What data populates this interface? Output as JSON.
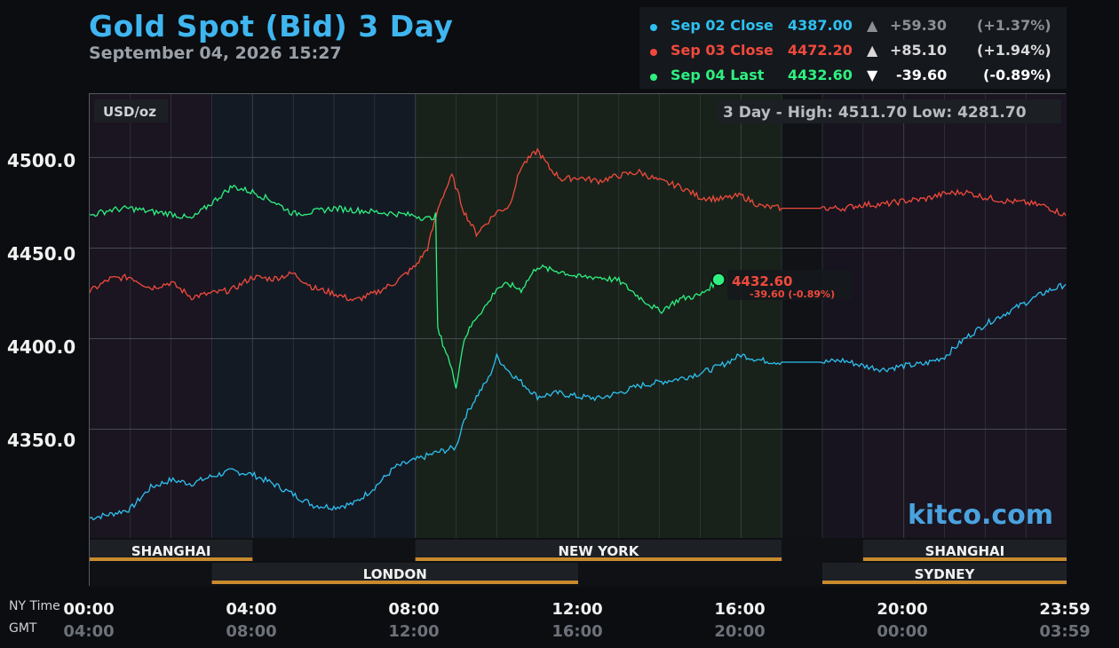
{
  "title": "Gold Spot (Bid) 3 Day",
  "subtitle": "September 04, 2026 15:27",
  "legend": [
    {
      "label": "Sep 02 Close",
      "value": "4387.00",
      "arrow": "▲",
      "change": "+59.30",
      "pct": "(+1.37%)",
      "color": "#2ec0f0",
      "valcolor": "#2ec0f0",
      "chgcolor": "#8c9096"
    },
    {
      "label": "Sep 03 Close",
      "value": "4472.20",
      "arrow": "▲",
      "change": "+85.10",
      "pct": "(+1.94%)",
      "color": "#f04a3c",
      "valcolor": "#f04a3c",
      "chgcolor": "#d8d8d8"
    },
    {
      "label": "Sep 04 Last",
      "value": "4432.60",
      "arrow": "▼",
      "change": "-39.60",
      "pct": "(-0.89%)",
      "color": "#2ef080",
      "valcolor": "#2ef080",
      "chgcolor": "#ffffff"
    }
  ],
  "unit_label": "USD/oz",
  "range_label": "3 Day - High: 4511.70  Low: 4281.70",
  "watermark": "kitco.com",
  "last_marker": {
    "value": "4432.60",
    "change": "-39.60 (-0.89%)",
    "hour": 15.45
  },
  "x_axis": {
    "ny_label": "NY Time",
    "gmt_label": "GMT",
    "ny_ticks": [
      "00:00",
      "04:00",
      "08:00",
      "12:00",
      "16:00",
      "20:00",
      "23:59"
    ],
    "gmt_ticks": [
      "04:00",
      "08:00",
      "12:00",
      "16:00",
      "20:00",
      "00:00",
      "03:59"
    ]
  },
  "y_ticks": [
    "4500.0",
    "4450.0",
    "4400.0",
    "4350.0"
  ],
  "sessions": [
    {
      "name": "SHANGHAI",
      "start": 0,
      "end": 4,
      "row": 1
    },
    {
      "name": "NEW YORK",
      "start": 8,
      "end": 17,
      "row": 1
    },
    {
      "name": "SHANGHAI",
      "start": 19,
      "end": 24,
      "row": 1
    },
    {
      "name": "LONDON",
      "start": 3,
      "end": 12,
      "row": 2
    },
    {
      "name": "SYDNEY",
      "start": 18,
      "end": 24,
      "row": 2
    }
  ],
  "chart_data": {
    "type": "line",
    "title": "Gold Spot (Bid) 3 Day",
    "ylabel": "USD/oz",
    "ylim": [
      4290,
      4535
    ],
    "xlim_hours": [
      0,
      24
    ],
    "y_ticks": [
      4350,
      4400,
      4450,
      4500
    ],
    "x_ticks_ny": [
      "00:00",
      "04:00",
      "08:00",
      "12:00",
      "16:00",
      "20:00",
      "23:59"
    ],
    "grid": true,
    "high": 4511.7,
    "low": 4281.7,
    "series": [
      {
        "name": "Sep 02 Close",
        "color": "#2ec0f0",
        "x": [
          0,
          0.5,
          1,
          1.5,
          2,
          2.5,
          3,
          3.5,
          4,
          4.5,
          5,
          5.5,
          6,
          6.5,
          7,
          7.5,
          8,
          8.5,
          9,
          9.2,
          9.5,
          9.8,
          10,
          10.3,
          10.6,
          11,
          11.5,
          12,
          12.5,
          13,
          13.5,
          14,
          14.5,
          15,
          15.5,
          16,
          16.5,
          17,
          18,
          18.5,
          19,
          19.5,
          20,
          20.5,
          21,
          21.5,
          22,
          22.5,
          23,
          23.5,
          23.98
        ],
        "y": [
          4301,
          4303,
          4306,
          4318,
          4322,
          4320,
          4324,
          4327,
          4325,
          4320,
          4314,
          4308,
          4307,
          4309,
          4318,
          4329,
          4333,
          4337,
          4340,
          4356,
          4368,
          4378,
          4390,
          4382,
          4376,
          4368,
          4370,
          4368,
          4367,
          4370,
          4374,
          4376,
          4378,
          4381,
          4385,
          4391,
          4388,
          4387,
          4387,
          4388,
          4385,
          4383,
          4385,
          4386,
          4390,
          4400,
          4408,
          4414,
          4420,
          4426,
          4430
        ]
      },
      {
        "name": "Sep 03 Close",
        "color": "#f04a3c",
        "x": [
          0,
          0.5,
          1,
          1.5,
          2,
          2.5,
          3,
          3.5,
          4,
          4.5,
          5,
          5.5,
          6,
          6.5,
          7,
          7.5,
          8,
          8.3,
          8.6,
          8.9,
          9.2,
          9.5,
          9.8,
          10,
          10.3,
          10.6,
          11,
          11.3,
          11.6,
          12,
          12.5,
          13,
          13.5,
          14,
          14.5,
          15,
          15.5,
          16,
          16.5,
          17,
          18,
          18.5,
          19,
          19.5,
          20,
          20.5,
          21,
          21.5,
          22,
          22.5,
          23,
          23.5,
          23.98
        ],
        "y": [
          4426,
          4433,
          4434,
          4428,
          4431,
          4423,
          4425,
          4427,
          4434,
          4433,
          4436,
          4428,
          4425,
          4421,
          4425,
          4431,
          4440,
          4450,
          4475,
          4490,
          4470,
          4458,
          4465,
          4470,
          4473,
          4495,
          4504,
          4494,
          4488,
          4489,
          4487,
          4490,
          4492,
          4487,
          4484,
          4478,
          4477,
          4479,
          4473,
          4472,
          4472,
          4472,
          4474,
          4474,
          4476,
          4477,
          4480,
          4481,
          4478,
          4476,
          4475,
          4473,
          4468
        ]
      },
      {
        "name": "Sep 04 Last",
        "color": "#2ef080",
        "x": [
          0,
          0.5,
          1,
          1.5,
          2,
          2.5,
          3,
          3.5,
          4,
          4.5,
          5,
          5.5,
          6,
          6.5,
          7,
          7.5,
          8,
          8.3,
          8.5,
          8.55,
          8.8,
          9.0,
          9.2,
          9.5,
          9.8,
          10,
          10.3,
          10.6,
          11,
          11.3,
          11.6,
          12,
          12.5,
          13,
          13.5,
          14,
          14.5,
          15,
          15.45
        ],
        "y": [
          4468,
          4471,
          4472,
          4470,
          4469,
          4466,
          4475,
          4484,
          4481,
          4476,
          4469,
          4470,
          4472,
          4471,
          4470,
          4469,
          4468,
          4466,
          4468,
          4405,
          4390,
          4374,
          4400,
          4412,
          4420,
          4428,
          4430,
          4427,
          4440,
          4438,
          4437,
          4434,
          4434,
          4432,
          4423,
          4415,
          4422,
          4424,
          4432.6
        ]
      }
    ]
  }
}
